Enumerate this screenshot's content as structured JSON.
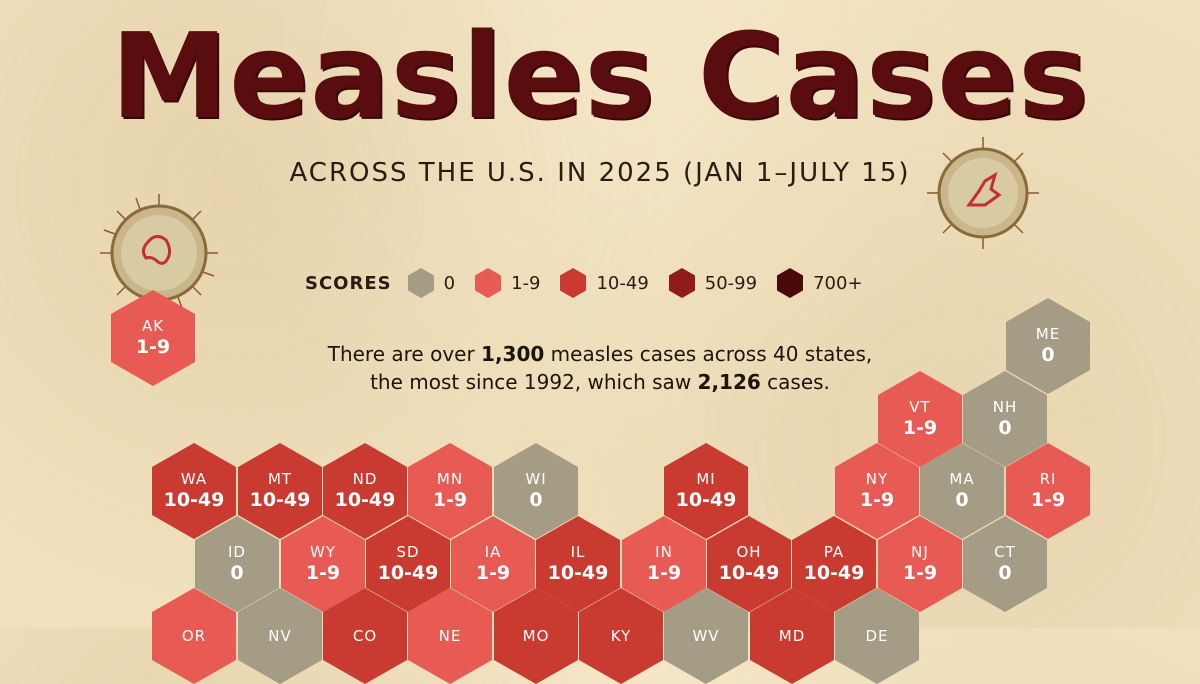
{
  "title": "Measles Cases",
  "subtitle": "ACROSS THE U.S. IN 2025 (JAN 1–JULY 15)",
  "legend": {
    "label": "SCORES",
    "items": [
      {
        "label": "0",
        "color": "#a59c85"
      },
      {
        "label": "1-9",
        "color": "#e85b55"
      },
      {
        "label": "10-49",
        "color": "#c93b30"
      },
      {
        "label": "50-99",
        "color": "#8f1c18"
      },
      {
        "label": "700+",
        "color": "#4a0a0c"
      }
    ]
  },
  "note": {
    "line1_a": "There are over ",
    "line1_b": "1,300",
    "line1_c": " measles cases across 40 states,",
    "line2_a": "the most since 1992, which saw ",
    "line2_b": "2,126",
    "line2_c": " cases."
  },
  "colors": {
    "0": "#a59c85",
    "1-9": "#e85b55",
    "10-49": "#c93b30"
  },
  "states": [
    {
      "abbr": "AK",
      "value": "1-9",
      "bucket": "1-9"
    },
    {
      "abbr": "ME",
      "value": "0",
      "bucket": "0"
    },
    {
      "abbr": "VT",
      "value": "1-9",
      "bucket": "1-9"
    },
    {
      "abbr": "NH",
      "value": "0",
      "bucket": "0"
    },
    {
      "abbr": "WA",
      "value": "10-49",
      "bucket": "10-49"
    },
    {
      "abbr": "MT",
      "value": "10-49",
      "bucket": "10-49"
    },
    {
      "abbr": "ND",
      "value": "10-49",
      "bucket": "10-49"
    },
    {
      "abbr": "MN",
      "value": "1-9",
      "bucket": "1-9"
    },
    {
      "abbr": "WI",
      "value": "0",
      "bucket": "0"
    },
    {
      "abbr": "MI",
      "value": "10-49",
      "bucket": "10-49"
    },
    {
      "abbr": "NY",
      "value": "1-9",
      "bucket": "1-9"
    },
    {
      "abbr": "MA",
      "value": "0",
      "bucket": "0"
    },
    {
      "abbr": "RI",
      "value": "1-9",
      "bucket": "1-9"
    },
    {
      "abbr": "ID",
      "value": "0",
      "bucket": "0"
    },
    {
      "abbr": "WY",
      "value": "1-9",
      "bucket": "1-9"
    },
    {
      "abbr": "SD",
      "value": "10-49",
      "bucket": "10-49"
    },
    {
      "abbr": "IA",
      "value": "1-9",
      "bucket": "1-9"
    },
    {
      "abbr": "IL",
      "value": "10-49",
      "bucket": "10-49"
    },
    {
      "abbr": "IN",
      "value": "1-9",
      "bucket": "1-9"
    },
    {
      "abbr": "OH",
      "value": "10-49",
      "bucket": "10-49"
    },
    {
      "abbr": "PA",
      "value": "10-49",
      "bucket": "10-49"
    },
    {
      "abbr": "NJ",
      "value": "1-9",
      "bucket": "1-9"
    },
    {
      "abbr": "CT",
      "value": "0",
      "bucket": "0"
    },
    {
      "abbr": "OR",
      "value": "",
      "bucket": "1-9"
    },
    {
      "abbr": "NV",
      "value": "",
      "bucket": "0"
    },
    {
      "abbr": "CO",
      "value": "",
      "bucket": "10-49"
    },
    {
      "abbr": "NE",
      "value": "",
      "bucket": "1-9"
    },
    {
      "abbr": "MO",
      "value": "",
      "bucket": "10-49"
    },
    {
      "abbr": "KY",
      "value": "",
      "bucket": "10-49"
    },
    {
      "abbr": "WV",
      "value": "",
      "bucket": "0"
    },
    {
      "abbr": "MD",
      "value": "",
      "bucket": "10-49"
    },
    {
      "abbr": "DE",
      "value": "",
      "bucket": "0"
    }
  ]
}
